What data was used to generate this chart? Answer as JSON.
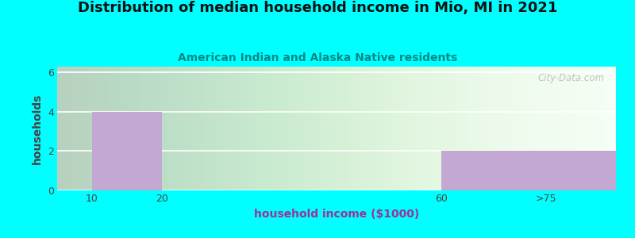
{
  "title": "Distribution of median household income in Mio, MI in 2021",
  "subtitle": "American Indian and Alaska Native residents",
  "xlabel": "household income ($1000)",
  "ylabel": "households",
  "background_color": "#00FFFF",
  "bar_color": "#C4A8D4",
  "bars": [
    {
      "x_left": 10,
      "x_right": 20,
      "height": 4
    },
    {
      "x_left": 60,
      "x_right": 85,
      "height": 2
    }
  ],
  "xtick_positions": [
    10,
    20,
    60,
    75
  ],
  "xtick_labels": [
    "10",
    "20",
    "60",
    ">75"
  ],
  "xlim": [
    5,
    85
  ],
  "ylim": [
    0,
    6.3
  ],
  "yticks": [
    0,
    2,
    4,
    6
  ],
  "title_fontsize": 13,
  "subtitle_fontsize": 10,
  "axis_label_fontsize": 10,
  "tick_fontsize": 9,
  "watermark": "City-Data.com"
}
